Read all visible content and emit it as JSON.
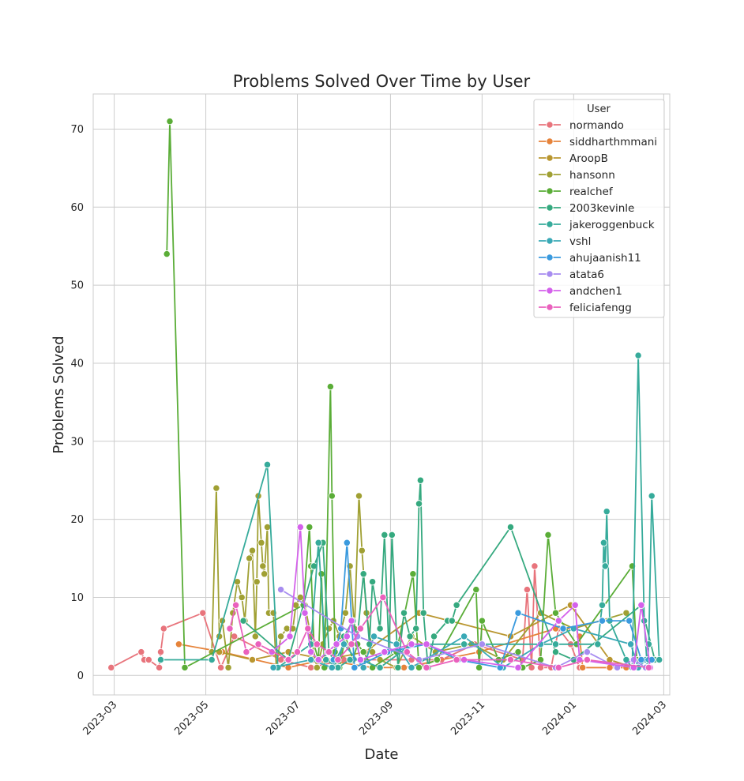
{
  "chart_data": {
    "type": "line",
    "title": "Problems Solved Over Time by User",
    "xlabel": "Date",
    "ylabel": "Problems Solved",
    "xlim": [
      "2023-02-15",
      "2024-03-05"
    ],
    "ylim": [
      -2.5,
      74.5
    ],
    "x_ticks": [
      "2023-03",
      "2023-05",
      "2023-07",
      "2023-09",
      "2023-11",
      "2024-01",
      "2024-03"
    ],
    "y_ticks": [
      0,
      10,
      20,
      30,
      40,
      50,
      60,
      70
    ],
    "grid": true,
    "legend_title": "User",
    "legend_position": "upper-right",
    "series": [
      {
        "name": "normando",
        "color": "#e8747c",
        "points": [
          [
            "2023-02-27",
            1
          ],
          [
            "2023-03-19",
            3
          ],
          [
            "2023-03-21",
            2
          ],
          [
            "2023-03-24",
            2
          ],
          [
            "2023-03-31",
            1
          ],
          [
            "2023-04-01",
            3
          ],
          [
            "2023-04-03",
            6
          ],
          [
            "2023-04-29",
            8
          ],
          [
            "2023-05-11",
            1
          ],
          [
            "2023-05-20",
            5
          ],
          [
            "2023-06-20",
            2
          ],
          [
            "2023-07-10",
            1
          ],
          [
            "2023-08-01",
            2
          ],
          [
            "2023-09-15",
            2
          ],
          [
            "2023-10-05",
            2
          ],
          [
            "2023-10-27",
            4
          ],
          [
            "2023-11-28",
            2
          ],
          [
            "2023-12-01",
            11
          ],
          [
            "2023-12-04",
            1
          ],
          [
            "2023-12-06",
            14
          ],
          [
            "2023-12-10",
            1
          ],
          [
            "2023-12-17",
            1
          ],
          [
            "2023-12-22",
            6
          ],
          [
            "2023-12-30",
            4
          ],
          [
            "2024-01-05",
            1
          ],
          [
            "2024-02-12",
            1
          ]
        ]
      },
      {
        "name": "siddharthmmani",
        "color": "#e6833a",
        "points": [
          [
            "2023-04-13",
            4
          ],
          [
            "2023-05-12",
            3
          ],
          [
            "2023-06-25",
            1
          ],
          [
            "2023-07-18",
            2
          ],
          [
            "2023-08-20",
            1
          ],
          [
            "2023-09-10",
            1
          ],
          [
            "2023-10-30",
            3
          ],
          [
            "2023-12-20",
            6
          ],
          [
            "2024-01-02",
            6
          ],
          [
            "2024-01-05",
            5
          ],
          [
            "2024-01-07",
            1
          ],
          [
            "2024-01-25",
            1
          ],
          [
            "2024-02-05",
            1
          ]
        ]
      },
      {
        "name": "AroopB",
        "color": "#b9962f",
        "points": [
          [
            "2023-05-10",
            3
          ],
          [
            "2023-06-01",
            2
          ],
          [
            "2023-06-25",
            3
          ],
          [
            "2023-07-20",
            2
          ],
          [
            "2023-08-15",
            3
          ],
          [
            "2023-09-20",
            8
          ],
          [
            "2023-11-20",
            5
          ],
          [
            "2023-12-30",
            9
          ],
          [
            "2024-01-25",
            2
          ],
          [
            "2024-02-10",
            1
          ]
        ]
      },
      {
        "name": "hansonn",
        "color": "#a0a033",
        "points": [
          [
            "2023-05-05",
            3
          ],
          [
            "2023-05-08",
            24
          ],
          [
            "2023-05-10",
            5
          ],
          [
            "2023-05-12",
            7
          ],
          [
            "2023-05-16",
            1
          ],
          [
            "2023-05-19",
            8
          ],
          [
            "2023-05-22",
            12
          ],
          [
            "2023-05-25",
            10
          ],
          [
            "2023-05-27",
            7
          ],
          [
            "2023-05-30",
            15
          ],
          [
            "2023-06-01",
            16
          ],
          [
            "2023-06-03",
            5
          ],
          [
            "2023-06-04",
            12
          ],
          [
            "2023-06-05",
            23
          ],
          [
            "2023-06-07",
            17
          ],
          [
            "2023-06-08",
            14
          ],
          [
            "2023-06-09",
            13
          ],
          [
            "2023-06-11",
            19
          ],
          [
            "2023-06-12",
            8
          ],
          [
            "2023-06-15",
            8
          ],
          [
            "2023-06-17",
            1
          ],
          [
            "2023-06-20",
            5
          ],
          [
            "2023-06-24",
            6
          ],
          [
            "2023-06-28",
            6
          ],
          [
            "2023-06-30",
            9
          ],
          [
            "2023-07-03",
            10
          ],
          [
            "2023-07-06",
            9
          ],
          [
            "2023-07-10",
            5
          ],
          [
            "2023-07-14",
            1
          ],
          [
            "2023-07-18",
            4
          ],
          [
            "2023-07-22",
            6
          ],
          [
            "2023-07-25",
            7
          ],
          [
            "2023-07-29",
            5
          ],
          [
            "2023-08-02",
            8
          ],
          [
            "2023-08-05",
            14
          ],
          [
            "2023-08-08",
            6
          ],
          [
            "2023-08-11",
            23
          ],
          [
            "2023-08-13",
            16
          ],
          [
            "2023-08-16",
            8
          ],
          [
            "2023-08-20",
            3
          ],
          [
            "2023-08-25",
            2
          ],
          [
            "2023-09-05",
            1
          ],
          [
            "2023-09-15",
            5
          ],
          [
            "2023-10-01",
            3
          ],
          [
            "2023-10-25",
            4
          ],
          [
            "2023-11-15",
            2
          ],
          [
            "2023-12-10",
            8
          ],
          [
            "2024-01-01",
            6
          ],
          [
            "2024-02-05",
            8
          ]
        ]
      },
      {
        "name": "realchef",
        "color": "#5aad37",
        "points": [
          [
            "2023-04-05",
            54
          ],
          [
            "2023-04-07",
            71
          ],
          [
            "2023-04-17",
            1
          ],
          [
            "2023-07-05",
            9
          ],
          [
            "2023-07-09",
            19
          ],
          [
            "2023-07-10",
            14
          ],
          [
            "2023-07-12",
            4
          ],
          [
            "2023-07-15",
            2
          ],
          [
            "2023-07-17",
            13
          ],
          [
            "2023-07-19",
            1
          ],
          [
            "2023-07-23",
            37
          ],
          [
            "2023-07-24",
            23
          ],
          [
            "2023-07-26",
            3
          ],
          [
            "2023-07-29",
            1
          ],
          [
            "2023-08-02",
            5
          ],
          [
            "2023-08-07",
            2
          ],
          [
            "2023-08-10",
            4
          ],
          [
            "2023-08-14",
            3
          ],
          [
            "2023-08-20",
            1
          ],
          [
            "2023-09-05",
            3
          ],
          [
            "2023-09-16",
            13
          ],
          [
            "2023-09-20",
            1
          ],
          [
            "2023-10-02",
            2
          ],
          [
            "2023-10-28",
            11
          ],
          [
            "2023-10-30",
            1
          ],
          [
            "2023-11-01",
            7
          ],
          [
            "2023-11-12",
            2
          ],
          [
            "2023-11-25",
            3
          ],
          [
            "2023-11-28",
            1
          ],
          [
            "2023-12-10",
            2
          ],
          [
            "2023-12-15",
            18
          ],
          [
            "2023-12-20",
            8
          ],
          [
            "2024-01-03",
            4
          ],
          [
            "2024-02-09",
            14
          ],
          [
            "2024-02-12",
            2
          ]
        ]
      },
      {
        "name": "2003kevinle",
        "color": "#35a97f",
        "points": [
          [
            "2023-05-26",
            7
          ],
          [
            "2023-06-25",
            2
          ],
          [
            "2023-07-12",
            14
          ],
          [
            "2023-07-18",
            17
          ],
          [
            "2023-07-22",
            3
          ],
          [
            "2023-07-28",
            1
          ],
          [
            "2023-08-01",
            5
          ],
          [
            "2023-08-07",
            7
          ],
          [
            "2023-08-10",
            5
          ],
          [
            "2023-08-14",
            13
          ],
          [
            "2023-08-18",
            4
          ],
          [
            "2023-08-20",
            12
          ],
          [
            "2023-08-25",
            6
          ],
          [
            "2023-08-28",
            18
          ],
          [
            "2023-08-31",
            3
          ],
          [
            "2023-09-02",
            18
          ],
          [
            "2023-09-06",
            1
          ],
          [
            "2023-09-10",
            8
          ],
          [
            "2023-09-14",
            5
          ],
          [
            "2023-09-18",
            6
          ],
          [
            "2023-09-20",
            22
          ],
          [
            "2023-09-21",
            25
          ],
          [
            "2023-09-23",
            8
          ],
          [
            "2023-09-26",
            1
          ],
          [
            "2023-09-30",
            5
          ],
          [
            "2023-10-09",
            7
          ],
          [
            "2023-10-12",
            7
          ],
          [
            "2023-10-15",
            9
          ],
          [
            "2023-11-20",
            19
          ],
          [
            "2023-12-20",
            3
          ],
          [
            "2024-01-01",
            2
          ],
          [
            "2024-02-15",
            9
          ],
          [
            "2024-02-24",
            2
          ]
        ]
      },
      {
        "name": "jakeroggenbuck",
        "color": "#36ab9b",
        "points": [
          [
            "2023-04-01",
            2
          ],
          [
            "2023-05-05",
            2
          ],
          [
            "2023-06-11",
            27
          ],
          [
            "2023-06-18",
            1
          ],
          [
            "2023-07-10",
            4
          ],
          [
            "2023-07-15",
            17
          ],
          [
            "2023-07-20",
            2
          ],
          [
            "2023-07-28",
            1
          ],
          [
            "2023-08-05",
            2
          ],
          [
            "2023-08-12",
            2
          ],
          [
            "2023-08-25",
            1
          ],
          [
            "2023-09-15",
            4
          ],
          [
            "2023-10-20",
            4
          ],
          [
            "2023-12-20",
            4
          ],
          [
            "2024-01-17",
            4
          ],
          [
            "2024-01-20",
            9
          ],
          [
            "2024-01-21",
            17
          ],
          [
            "2024-01-22",
            14
          ],
          [
            "2024-01-23",
            21
          ],
          [
            "2024-01-25",
            7
          ],
          [
            "2024-02-05",
            2
          ],
          [
            "2024-02-09",
            1
          ],
          [
            "2024-02-13",
            41
          ],
          [
            "2024-02-17",
            7
          ],
          [
            "2024-02-19",
            1
          ],
          [
            "2024-02-20",
            4
          ],
          [
            "2024-02-22",
            23
          ],
          [
            "2024-02-27",
            2
          ]
        ]
      },
      {
        "name": "vshl",
        "color": "#39a9b6",
        "points": [
          [
            "2023-06-15",
            1
          ],
          [
            "2023-07-10",
            2
          ],
          [
            "2023-07-24",
            1
          ],
          [
            "2023-08-01",
            4
          ],
          [
            "2023-08-14",
            1
          ],
          [
            "2023-08-21",
            5
          ],
          [
            "2023-09-05",
            4
          ],
          [
            "2023-09-15",
            1
          ],
          [
            "2023-10-20",
            5
          ],
          [
            "2023-11-15",
            1
          ],
          [
            "2023-12-10",
            4
          ],
          [
            "2024-01-01",
            6
          ],
          [
            "2024-02-08",
            4
          ],
          [
            "2024-02-13",
            1
          ],
          [
            "2024-02-18",
            2
          ],
          [
            "2024-02-20",
            2
          ]
        ]
      },
      {
        "name": "ahujaanish11",
        "color": "#3a9ade",
        "points": [
          [
            "2023-07-25",
            2
          ],
          [
            "2023-07-30",
            6
          ],
          [
            "2023-08-03",
            17
          ],
          [
            "2023-08-08",
            1
          ],
          [
            "2023-08-30",
            3
          ],
          [
            "2023-09-25",
            4
          ],
          [
            "2023-10-16",
            2
          ],
          [
            "2023-11-13",
            1
          ],
          [
            "2023-11-25",
            8
          ],
          [
            "2023-12-25",
            6
          ],
          [
            "2024-01-20",
            7
          ],
          [
            "2024-02-07",
            7
          ],
          [
            "2024-02-15",
            2
          ],
          [
            "2024-02-22",
            2
          ]
        ]
      },
      {
        "name": "atata6",
        "color": "#a78cf0",
        "points": [
          [
            "2023-06-20",
            11
          ],
          [
            "2023-08-10",
            5
          ],
          [
            "2023-09-20",
            2
          ],
          [
            "2023-11-01",
            4
          ],
          [
            "2023-12-20",
            1
          ],
          [
            "2024-01-10",
            3
          ],
          [
            "2024-01-30",
            1
          ],
          [
            "2024-02-10",
            2
          ],
          [
            "2024-02-18",
            1
          ]
        ]
      },
      {
        "name": "andchen1",
        "color": "#d461eb",
        "points": [
          [
            "2023-06-14",
            3
          ],
          [
            "2023-06-26",
            5
          ],
          [
            "2023-07-03",
            19
          ],
          [
            "2023-07-06",
            8
          ],
          [
            "2023-07-10",
            3
          ],
          [
            "2023-07-15",
            2
          ],
          [
            "2023-07-21",
            3
          ],
          [
            "2023-07-27",
            4
          ],
          [
            "2023-08-03",
            5
          ],
          [
            "2023-08-06",
            7
          ],
          [
            "2023-08-12",
            2
          ],
          [
            "2023-08-28",
            3
          ],
          [
            "2023-09-15",
            4
          ],
          [
            "2023-09-25",
            4
          ],
          [
            "2023-10-20",
            2
          ],
          [
            "2023-11-25",
            1
          ],
          [
            "2023-12-22",
            7
          ],
          [
            "2024-01-02",
            9
          ],
          [
            "2024-01-05",
            2
          ],
          [
            "2024-02-10",
            1
          ],
          [
            "2024-02-15",
            9
          ],
          [
            "2024-02-21",
            1
          ]
        ]
      },
      {
        "name": "feliciafengg",
        "color": "#ea61bd",
        "points": [
          [
            "2023-05-17",
            6
          ],
          [
            "2023-05-21",
            9
          ],
          [
            "2023-05-28",
            3
          ],
          [
            "2023-06-05",
            4
          ],
          [
            "2023-06-25",
            2
          ],
          [
            "2023-07-01",
            3
          ],
          [
            "2023-07-08",
            6
          ],
          [
            "2023-07-14",
            4
          ],
          [
            "2023-07-22",
            3
          ],
          [
            "2023-07-28",
            2
          ],
          [
            "2023-08-06",
            4
          ],
          [
            "2023-08-12",
            6
          ],
          [
            "2023-08-27",
            10
          ],
          [
            "2023-09-12",
            3
          ],
          [
            "2023-09-25",
            1
          ],
          [
            "2023-10-15",
            2
          ],
          [
            "2023-11-20",
            2
          ],
          [
            "2023-12-22",
            1
          ],
          [
            "2024-01-10",
            2
          ],
          [
            "2024-02-20",
            1
          ]
        ]
      }
    ]
  }
}
